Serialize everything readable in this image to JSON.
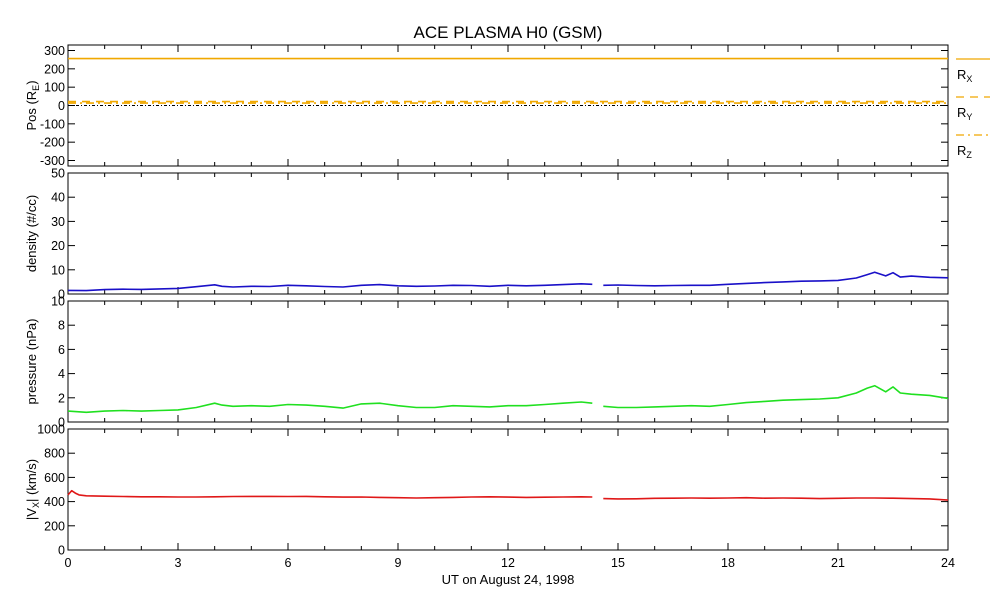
{
  "title": "ACE PLASMA H0 (GSM)",
  "xlabel": "UT on August 24, 1998",
  "chart_data": [
    {
      "id": "position",
      "type": "line",
      "ylabel_main": "Pos (R",
      "ylabel_sub": "E",
      "ylabel_end": ")",
      "ylim": [
        -330,
        330
      ],
      "yticks": [
        300,
        200,
        100,
        0,
        -100,
        -200,
        -300
      ],
      "xlim": [
        0,
        24
      ],
      "grid": false,
      "legend_position": "right",
      "series": [
        {
          "name": "R",
          "sub": "X",
          "color": "#f0a800",
          "dash": "solid",
          "x": [
            0,
            24
          ],
          "y": [
            256,
            256
          ]
        },
        {
          "name": "R",
          "sub": "Y",
          "color": "#f0a800",
          "dash": "dashed",
          "x": [
            0,
            24
          ],
          "y": [
            21,
            21
          ]
        },
        {
          "name": "R",
          "sub": "Z",
          "color": "#f0a800",
          "dash": "dashdot",
          "x": [
            0,
            24
          ],
          "y": [
            13,
            13
          ]
        }
      ],
      "zero_line": true
    },
    {
      "id": "density",
      "type": "line",
      "ylabel": "density (#/cc)",
      "ylim": [
        0,
        50
      ],
      "yticks": [
        0,
        10,
        20,
        30,
        40,
        50
      ],
      "xlim": [
        0,
        24
      ],
      "grid": false,
      "series": [
        {
          "color": "#1a10c8",
          "x": [
            0,
            0.5,
            1,
            1.5,
            2,
            2.5,
            3,
            3.5,
            4,
            4.2,
            4.5,
            5,
            5.5,
            6,
            6.5,
            7,
            7.5,
            8,
            8.5,
            9,
            9.5,
            10,
            10.5,
            11,
            11.5,
            12,
            12.5,
            13,
            13.5,
            14,
            14.3,
            null,
            14.6,
            15,
            15.5,
            16,
            16.5,
            17,
            17.5,
            18,
            18.5,
            19,
            19.5,
            20,
            20.5,
            21,
            21.5,
            21.8,
            22,
            22.3,
            22.5,
            22.7,
            23,
            23.5,
            24
          ],
          "y": [
            1.5,
            1.4,
            1.8,
            2.0,
            1.9,
            2.1,
            2.3,
            3.0,
            3.8,
            3.2,
            2.9,
            3.2,
            3.1,
            3.6,
            3.4,
            3.1,
            2.9,
            3.6,
            3.9,
            3.4,
            3.2,
            3.3,
            3.6,
            3.5,
            3.2,
            3.6,
            3.4,
            3.6,
            3.9,
            4.2,
            4.0,
            null,
            3.6,
            3.7,
            3.5,
            3.4,
            3.5,
            3.6,
            3.6,
            4.0,
            4.4,
            4.7,
            5.0,
            5.3,
            5.4,
            5.6,
            6.6,
            8.0,
            9.0,
            7.5,
            8.8,
            7.0,
            7.4,
            6.9,
            6.7
          ]
        }
      ]
    },
    {
      "id": "pressure",
      "type": "line",
      "ylabel": "pressure (nPa)",
      "ylim": [
        0,
        10
      ],
      "yticks": [
        0,
        2,
        4,
        6,
        8,
        10
      ],
      "xlim": [
        0,
        24
      ],
      "grid": false,
      "series": [
        {
          "color": "#20e020",
          "x": [
            0,
            0.5,
            1,
            1.5,
            2,
            2.5,
            3,
            3.5,
            4,
            4.2,
            4.5,
            5,
            5.5,
            6,
            6.5,
            7,
            7.5,
            8,
            8.5,
            9,
            9.5,
            10,
            10.5,
            11,
            11.5,
            12,
            12.5,
            13,
            13.5,
            14,
            14.3,
            null,
            14.6,
            15,
            15.5,
            16,
            16.5,
            17,
            17.5,
            18,
            18.5,
            19,
            19.5,
            20,
            20.5,
            21,
            21.5,
            21.8,
            22,
            22.3,
            22.5,
            22.7,
            23,
            23.5,
            24
          ],
          "y": [
            0.9,
            0.8,
            0.9,
            0.95,
            0.9,
            0.95,
            1.0,
            1.2,
            1.55,
            1.4,
            1.3,
            1.35,
            1.3,
            1.45,
            1.4,
            1.3,
            1.15,
            1.5,
            1.55,
            1.35,
            1.2,
            1.2,
            1.35,
            1.3,
            1.25,
            1.35,
            1.35,
            1.45,
            1.55,
            1.65,
            1.55,
            null,
            1.3,
            1.2,
            1.2,
            1.25,
            1.3,
            1.35,
            1.3,
            1.45,
            1.6,
            1.7,
            1.8,
            1.85,
            1.9,
            2.0,
            2.4,
            2.8,
            3.0,
            2.5,
            2.9,
            2.4,
            2.3,
            2.2,
            1.95
          ]
        }
      ]
    },
    {
      "id": "vx",
      "type": "line",
      "ylabel_main": "|V",
      "ylabel_sub": "X",
      "ylabel_end": "| (km/s)",
      "ylim": [
        0,
        1000
      ],
      "yticks": [
        0,
        200,
        400,
        600,
        800,
        1000
      ],
      "xlim": [
        0,
        24
      ],
      "xticks": [
        0,
        3,
        6,
        9,
        12,
        15,
        18,
        21,
        24
      ],
      "grid": false,
      "series": [
        {
          "color": "#e01818",
          "x": [
            0,
            0.1,
            0.2,
            0.3,
            0.5,
            1,
            1.5,
            2,
            2.5,
            3,
            3.5,
            4,
            4.5,
            5,
            5.5,
            6,
            6.5,
            7,
            7.5,
            8,
            8.5,
            9,
            9.5,
            10,
            10.5,
            11,
            11.5,
            12,
            12.5,
            13,
            13.5,
            14,
            14.3,
            null,
            14.6,
            15,
            15.5,
            16,
            16.5,
            17,
            17.5,
            18,
            18.5,
            19,
            19.5,
            20,
            20.5,
            21,
            21.5,
            22,
            22.5,
            23,
            23.5,
            24
          ],
          "y": [
            455,
            490,
            470,
            455,
            448,
            445,
            442,
            440,
            440,
            438,
            438,
            440,
            442,
            443,
            443,
            442,
            443,
            440,
            437,
            438,
            435,
            432,
            430,
            432,
            435,
            438,
            440,
            437,
            435,
            436,
            438,
            440,
            438,
            null,
            425,
            422,
            423,
            427,
            428,
            430,
            428,
            430,
            432,
            428,
            430,
            428,
            425,
            427,
            430,
            430,
            428,
            425,
            422,
            412
          ]
        }
      ]
    }
  ]
}
